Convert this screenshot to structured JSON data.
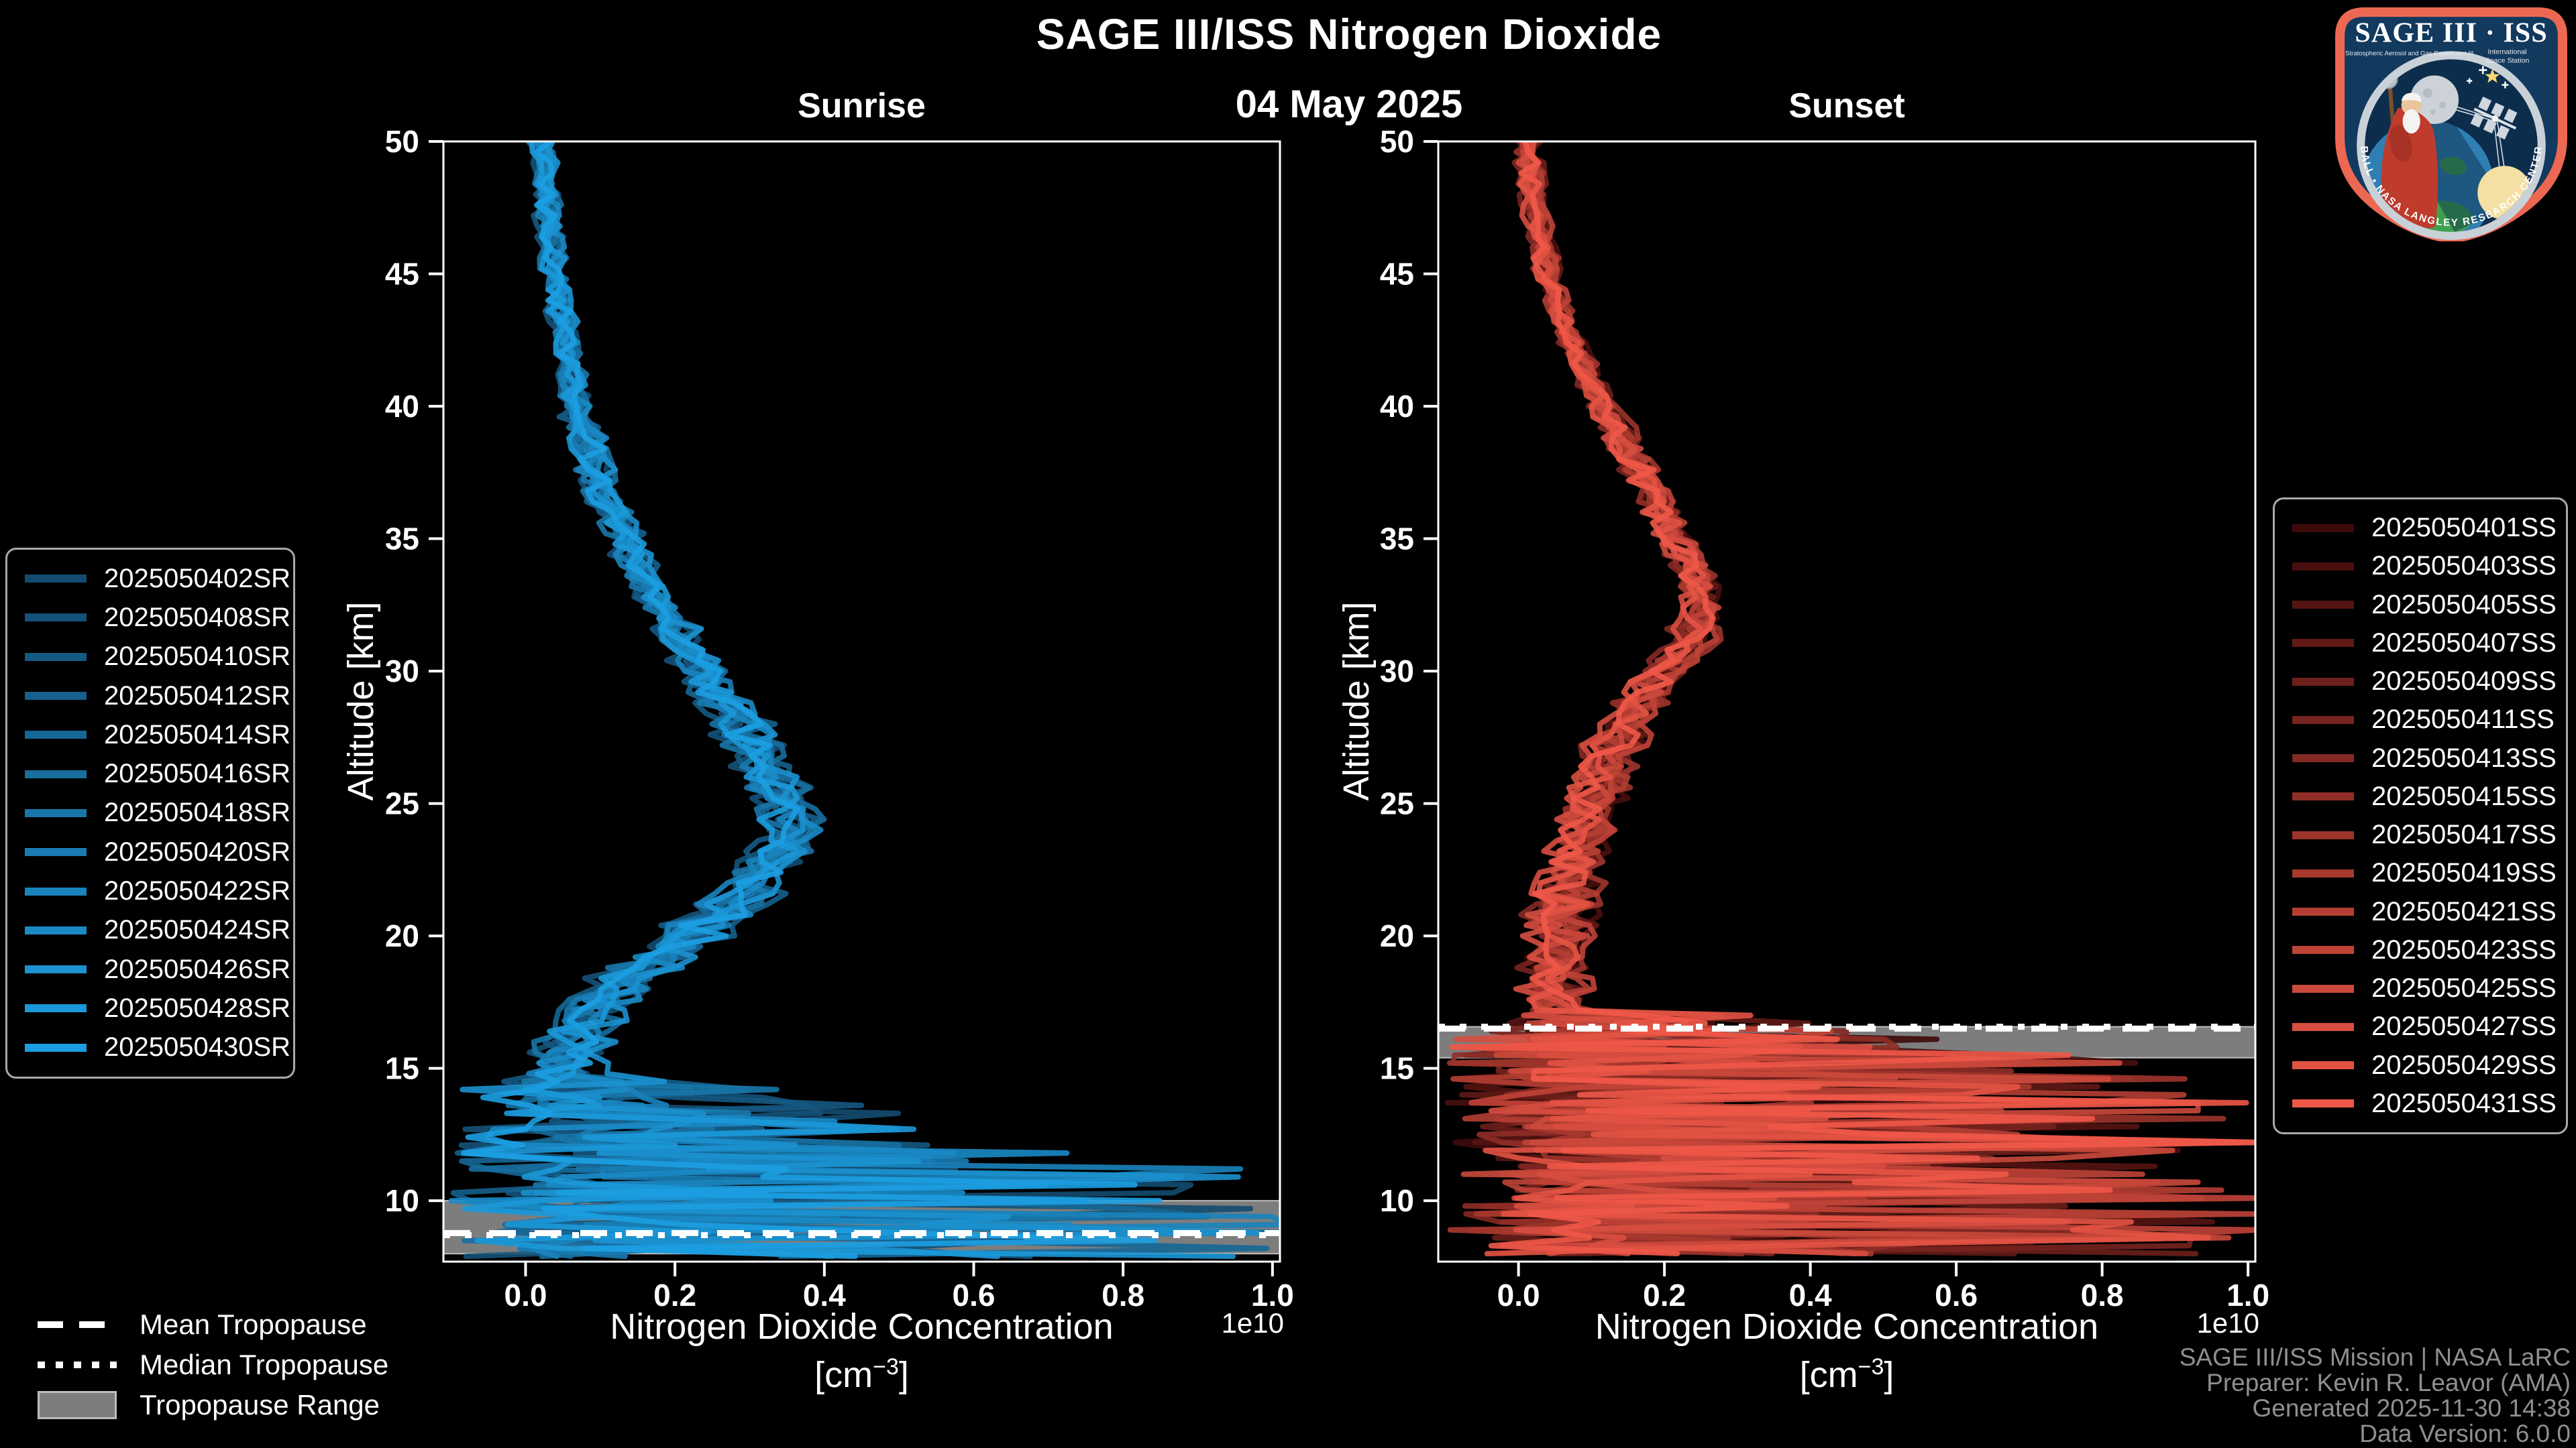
{
  "header": {
    "title": "SAGE III/ISS Nitrogen Dioxide",
    "date": "04 May 2025"
  },
  "style": {
    "background": "#000000",
    "text_color": "#ffffff",
    "muted_text_color": "#8f8f8f",
    "spine_color": "#ffffff",
    "tropopause_gray": "#7d7d7d",
    "tropopause_edge": "#bdbdbd",
    "legend_border": "#a9a9a9",
    "sunrise_color_dark": "#134b70",
    "sunrise_color_bright": "#1c9fe2",
    "sunset_color_dark": "#3d0a0a",
    "sunset_color_bright": "#ef5848"
  },
  "tropopause_legend": {
    "mean_label": "Mean Tropopause",
    "median_label": "Median Tropopause",
    "range_label": "Tropopause Range"
  },
  "footer": {
    "lines": [
      "SAGE III/ISS Mission | NASA LaRC",
      "Preparer: Kevin R. Leavor (AMA)",
      "Generated 2025-11-30 14:38",
      "Data Version: 6.0.0"
    ]
  },
  "logo": {
    "title": "SAGE III · ISS",
    "subtitle_left": "Stratospheric Aerosol and Gas Experiment III",
    "subtitle_right_line1": "International",
    "subtitle_right_line2": "Space Station",
    "ring_text": "BALL • NASA LANGLEY RESEARCH CENTER • TAS-I • ESA",
    "border_color": "#ed6852",
    "field_color": "#12395e"
  },
  "chart_data": [
    {
      "type": "line",
      "panel": "sunrise",
      "title": "Sunrise",
      "xlabel": "Nitrogen Dioxide Concentration [cm⁻³]",
      "xlabel_line1": "Nitrogen Dioxide Concentration",
      "xlabel_unit_pre": "[cm",
      "xlabel_unit_sup": "−3",
      "xlabel_unit_post": "]",
      "ylabel": "Altitude [km]",
      "x_offset_label": "1e10",
      "xlim": [
        -0.11,
        1.01
      ],
      "ylim": [
        7.7,
        50
      ],
      "xticks": [
        0.0,
        0.2,
        0.4,
        0.6,
        0.8,
        1.0
      ],
      "yticks": [
        10,
        15,
        20,
        25,
        30,
        35,
        40,
        45,
        50
      ],
      "grid": false,
      "legend_position": "left-outside",
      "series": [
        {
          "name": "2025050402SR",
          "color": "#134b70"
        },
        {
          "name": "2025050408SR",
          "color": "#145279"
        },
        {
          "name": "2025050410SR",
          "color": "#155983"
        },
        {
          "name": "2025050412SR",
          "color": "#15608c"
        },
        {
          "name": "2025050414SR",
          "color": "#166796"
        },
        {
          "name": "2025050416SR",
          "color": "#176e9f"
        },
        {
          "name": "2025050418SR",
          "color": "#1875a9"
        },
        {
          "name": "2025050420SR",
          "color": "#187cb2"
        },
        {
          "name": "2025050422SR",
          "color": "#1983bc"
        },
        {
          "name": "2025050424SR",
          "color": "#1a8ac5"
        },
        {
          "name": "2025050426SR",
          "color": "#1b91cf"
        },
        {
          "name": "2025050428SR",
          "color": "#1b98d8"
        },
        {
          "name": "2025050430SR",
          "color": "#1c9fe2"
        }
      ],
      "mean_profile": {
        "altitude_km": [
          50,
          48,
          46,
          44,
          42,
          40,
          38,
          36,
          34,
          32,
          30,
          29,
          28,
          27,
          26,
          25,
          24,
          23,
          22,
          21,
          20,
          19,
          18,
          17,
          16,
          15,
          14.5
        ],
        "concentration_1e10": [
          0.02,
          0.028,
          0.035,
          0.045,
          0.055,
          0.07,
          0.09,
          0.115,
          0.15,
          0.19,
          0.235,
          0.26,
          0.285,
          0.31,
          0.33,
          0.35,
          0.355,
          0.34,
          0.305,
          0.265,
          0.22,
          0.17,
          0.12,
          0.085,
          0.06,
          0.05,
          0.05
        ]
      },
      "chaos": {
        "below_km": 14.5,
        "reach_alt": [
          14.5,
          13,
          12,
          11,
          8
        ],
        "reach_max": [
          0.3,
          0.55,
          0.85,
          1.03,
          1.03
        ]
      },
      "tropopause": {
        "mean_km": 8.78,
        "median_km": 8.7,
        "range_km": [
          8.0,
          10.0
        ]
      }
    },
    {
      "type": "line",
      "panel": "sunset",
      "title": "Sunset",
      "xlabel": "Nitrogen Dioxide Concentration [cm⁻³]",
      "xlabel_line1": "Nitrogen Dioxide Concentration",
      "xlabel_unit_pre": "[cm",
      "xlabel_unit_sup": "−3",
      "xlabel_unit_post": "]",
      "ylabel": "Altitude [km]",
      "x_offset_label": "1e10",
      "xlim": [
        -0.11,
        1.01
      ],
      "ylim": [
        7.7,
        50
      ],
      "xticks": [
        0.0,
        0.2,
        0.4,
        0.6,
        0.8,
        1.0
      ],
      "yticks": [
        10,
        15,
        20,
        25,
        30,
        35,
        40,
        45,
        50
      ],
      "grid": false,
      "legend_position": "right-outside",
      "series": [
        {
          "name": "2025050401SS",
          "color": "#3d0a0a"
        },
        {
          "name": "2025050403SS",
          "color": "#490f0e"
        },
        {
          "name": "2025050405SS",
          "color": "#551412"
        },
        {
          "name": "2025050407SS",
          "color": "#611a16"
        },
        {
          "name": "2025050409SS",
          "color": "#6c1f1b"
        },
        {
          "name": "2025050411SS",
          "color": "#78241f"
        },
        {
          "name": "2025050413SS",
          "color": "#842923"
        },
        {
          "name": "2025050415SS",
          "color": "#902e27"
        },
        {
          "name": "2025050417SS",
          "color": "#9c342b"
        },
        {
          "name": "2025050419SS",
          "color": "#a8392f"
        },
        {
          "name": "2025050421SS",
          "color": "#b43e33"
        },
        {
          "name": "2025050423SS",
          "color": "#c04337"
        },
        {
          "name": "2025050425SS",
          "color": "#cb493c"
        },
        {
          "name": "2025050427SS",
          "color": "#d74e40"
        },
        {
          "name": "2025050429SS",
          "color": "#e35344"
        },
        {
          "name": "2025050431SS",
          "color": "#ef5848"
        }
      ],
      "mean_profile": {
        "altitude_km": [
          50,
          48,
          46,
          44,
          42,
          40,
          38,
          36,
          35,
          34,
          33,
          32,
          31,
          30,
          29,
          28,
          27,
          26,
          25,
          24,
          23,
          22,
          21,
          20,
          19,
          18,
          17
        ],
        "concentration_1e10": [
          0.012,
          0.02,
          0.032,
          0.05,
          0.08,
          0.115,
          0.155,
          0.195,
          0.215,
          0.235,
          0.25,
          0.245,
          0.235,
          0.2,
          0.17,
          0.15,
          0.13,
          0.115,
          0.1,
          0.09,
          0.08,
          0.07,
          0.06,
          0.055,
          0.05,
          0.05,
          0.055
        ]
      },
      "chaos": {
        "below_km": 17.0,
        "reach_alt": [
          17,
          16,
          15,
          13.5,
          8
        ],
        "reach_max": [
          0.35,
          0.6,
          0.95,
          1.03,
          1.03
        ]
      },
      "tropopause": {
        "mean_km": 16.5,
        "median_km": 16.57,
        "range_km": [
          15.4,
          16.57
        ]
      }
    }
  ]
}
